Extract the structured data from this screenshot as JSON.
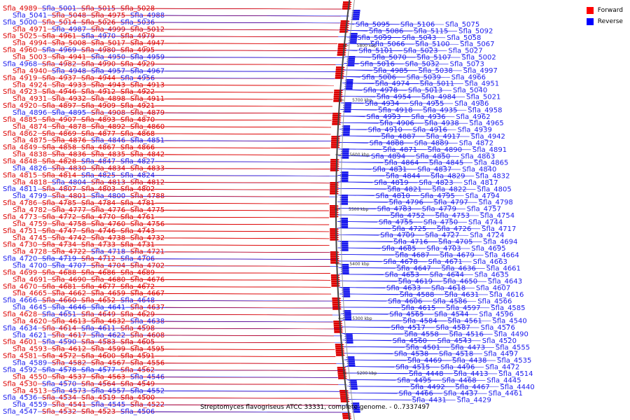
{
  "caption": "Streptomyces flavogriseus ATCC 33331, complete genome. - 0..7337497",
  "legend": {
    "items": [
      {
        "label": "Forward",
        "color": "#ff0000"
      },
      {
        "label": "Reverse",
        "color": "#0000ff"
      }
    ]
  },
  "colors": {
    "forward": "#dd0000",
    "reverse": "#1a1aee",
    "backbone": "#555555"
  },
  "ruler_labels": [
    "5800 kbp",
    "5700 kbp",
    "5600 kbp",
    "5500 kbp",
    "5400 kbp",
    "5300 kbp",
    "5200 kbp"
  ],
  "left_labels": [
    [
      "Sfla_4989",
      "f"
    ],
    [
      "Sfla_5001",
      "r"
    ],
    [
      "Sfla_5015",
      "f"
    ],
    [
      "Sfla_5028",
      "f"
    ],
    [
      "Sfla_5041",
      "r"
    ],
    [
      "Sfla_5048",
      "f"
    ],
    [
      "Sfla_4975",
      "f"
    ],
    [
      "Sfla_4988",
      "r"
    ],
    [
      "Sfla_5000",
      "r"
    ],
    [
      "Sfla_5014",
      "f"
    ],
    [
      "Sfla_5026",
      "f"
    ],
    [
      "Sfla_5036",
      "r"
    ],
    [
      "Sfla_4971",
      "f"
    ],
    [
      "Sfla_4987",
      "r"
    ],
    [
      "Sfla_4999",
      "f"
    ],
    [
      "Sfla_5012",
      "f"
    ],
    [
      "Sfla_5025",
      "f"
    ],
    [
      "Sfla_4961",
      "f"
    ],
    [
      "Sfla_4970",
      "r"
    ],
    [
      "Sfla_4979",
      "f"
    ],
    [
      "Sfla_4994",
      "f"
    ],
    [
      "Sfla_5008",
      "f"
    ],
    [
      "Sfla_5017",
      "f"
    ],
    [
      "Sfla_4947",
      "f"
    ],
    [
      "Sfla_4960",
      "f"
    ],
    [
      "Sfla_4969",
      "r"
    ],
    [
      "Sfla_4980",
      "f"
    ],
    [
      "Sfla_4995",
      "f"
    ],
    [
      "Sfla_5003",
      "f"
    ],
    [
      "Sfla_4941",
      "f"
    ],
    [
      "Sfla_4950",
      "r"
    ],
    [
      "Sfla_4959",
      "r"
    ],
    [
      "Sfla_4968",
      "r"
    ],
    [
      "Sfla_4982",
      "f"
    ],
    [
      "Sfla_4990",
      "f"
    ],
    [
      "Sfla_4929",
      "f"
    ],
    [
      "Sfla_4940",
      "f"
    ],
    [
      "Sfla_4948",
      "r"
    ],
    [
      "Sfla_4957",
      "r"
    ],
    [
      "Sfla_4967",
      "r"
    ],
    [
      "Sfla_4919",
      "f"
    ],
    [
      "Sfla_4937",
      "f"
    ],
    [
      "Sfla_4944",
      "f"
    ],
    [
      "Sfla_4956",
      "r"
    ],
    [
      "Sfla_4924",
      "f"
    ],
    [
      "Sfla_4933",
      "f"
    ],
    [
      "Sfla_4943",
      "f"
    ],
    [
      "Sfla_4913",
      "f"
    ],
    [
      "Sfla_4923",
      "f"
    ],
    [
      "Sfla_4946",
      "f"
    ],
    [
      "Sfla_4912",
      "f"
    ],
    [
      "Sfla_4922",
      "f"
    ],
    [
      "Sfla_4931",
      "f"
    ],
    [
      "Sfla_4932",
      "f"
    ],
    [
      "Sfla_4898",
      "f"
    ],
    [
      "Sfla_4911",
      "f"
    ],
    [
      "Sfla_4920",
      "f"
    ],
    [
      "Sfla_4897",
      "f"
    ],
    [
      "Sfla_4909",
      "f"
    ],
    [
      "Sfla_4921",
      "f"
    ],
    [
      "Sfla_4896",
      "r"
    ],
    [
      "Sfla_4895",
      "r"
    ],
    [
      "Sfla_4908",
      "f"
    ],
    [
      "Sfla_4879",
      "f"
    ],
    [
      "Sfla_4885",
      "f"
    ],
    [
      "Sfla_4907",
      "f"
    ],
    [
      "Sfla_4893",
      "f"
    ],
    [
      "Sfla_4870",
      "f"
    ],
    [
      "Sfla_4874",
      "f"
    ],
    [
      "Sfla_4878",
      "f"
    ],
    [
      "Sfla_4892",
      "f"
    ],
    [
      "Sfla_4860",
      "f"
    ],
    [
      "Sfla_4862",
      "f"
    ],
    [
      "Sfla_4869",
      "f"
    ],
    [
      "Sfla_4877",
      "f"
    ],
    [
      "Sfla_4868",
      "f"
    ],
    [
      "Sfla_4875",
      "f"
    ],
    [
      "Sfla_4876",
      "f"
    ],
    [
      "Sfla_4846",
      "r"
    ],
    [
      "Sfla_4851",
      "r"
    ],
    [
      "Sfla_4849",
      "f"
    ],
    [
      "Sfla_4858",
      "f"
    ],
    [
      "Sfla_4867",
      "f"
    ],
    [
      "Sfla_4866",
      "f"
    ],
    [
      "Sfla_4838",
      "f"
    ],
    [
      "Sfla_4836",
      "f"
    ],
    [
      "Sfla_4835",
      "f"
    ],
    [
      "Sfla_4842",
      "f"
    ],
    [
      "Sfla_4848",
      "f"
    ],
    [
      "Sfla_4828",
      "f"
    ],
    [
      "Sfla_4847",
      "r"
    ],
    [
      "Sfla_4827",
      "r"
    ],
    [
      "Sfla_4826",
      "r"
    ],
    [
      "Sfla_4830",
      "f"
    ],
    [
      "Sfla_4834",
      "f"
    ],
    [
      "Sfla_4833",
      "f"
    ],
    [
      "Sfla_4815",
      "f"
    ],
    [
      "Sfla_4814",
      "f"
    ],
    [
      "Sfla_4825",
      "r"
    ],
    [
      "Sfla_4824",
      "r"
    ],
    [
      "Sfla_4818",
      "f"
    ],
    [
      "Sfla_4804",
      "r"
    ],
    [
      "Sfla_4813",
      "f"
    ],
    [
      "Sfla_4812",
      "f"
    ],
    [
      "Sfla_4811",
      "r"
    ],
    [
      "Sfla_4807",
      "f"
    ],
    [
      "Sfla_4803",
      "f"
    ],
    [
      "Sfla_4802",
      "f"
    ],
    [
      "Sfla_4799",
      "r"
    ],
    [
      "Sfla_4801",
      "f"
    ],
    [
      "Sfla_4800",
      "r"
    ],
    [
      "Sfla_4788",
      "f"
    ],
    [
      "Sfla_4786",
      "f"
    ],
    [
      "Sfla_4785",
      "f"
    ],
    [
      "Sfla_4784",
      "f"
    ],
    [
      "Sfla_4781",
      "f"
    ],
    [
      "Sfla_4782",
      "f"
    ],
    [
      "Sfla_4777",
      "f"
    ],
    [
      "Sfla_4776",
      "f"
    ],
    [
      "Sfla_4775",
      "f"
    ],
    [
      "Sfla_4773",
      "f"
    ],
    [
      "Sfla_4772",
      "f"
    ],
    [
      "Sfla_4770",
      "f"
    ],
    [
      "Sfla_4761",
      "f"
    ],
    [
      "Sfla_4759",
      "f"
    ],
    [
      "Sfla_4758",
      "f"
    ],
    [
      "Sfla_4760",
      "f"
    ],
    [
      "Sfla_4756",
      "f"
    ],
    [
      "Sfla_4751",
      "f"
    ],
    [
      "Sfla_4747",
      "f"
    ],
    [
      "Sfla_4746",
      "f"
    ],
    [
      "Sfla_4743",
      "f"
    ],
    [
      "Sfla_4745",
      "f"
    ],
    [
      "Sfla_4742",
      "f"
    ],
    [
      "Sfla_4738",
      "f"
    ],
    [
      "Sfla_4732",
      "f"
    ],
    [
      "Sfla_4730",
      "f"
    ],
    [
      "Sfla_4734",
      "f"
    ],
    [
      "Sfla_4733",
      "f"
    ],
    [
      "Sfla_4731",
      "f"
    ],
    [
      "Sfla_4728",
      "f"
    ],
    [
      "Sfla_4722",
      "f"
    ],
    [
      "Sfla_4718",
      "r"
    ],
    [
      "Sfla_4721",
      "f"
    ],
    [
      "Sfla_4720",
      "r"
    ],
    [
      "Sfla_4719",
      "r"
    ],
    [
      "Sfla_4712",
      "f"
    ],
    [
      "Sfla_4706",
      "r"
    ],
    [
      "Sfla_4700",
      "r"
    ],
    [
      "Sfla_4707",
      "r"
    ],
    [
      "Sfla_4704",
      "f"
    ],
    [
      "Sfla_4702",
      "f"
    ],
    [
      "Sfla_4699",
      "f"
    ],
    [
      "Sfla_4688",
      "f"
    ],
    [
      "Sfla_4686",
      "f"
    ],
    [
      "Sfla_4689",
      "f"
    ],
    [
      "Sfla_4691",
      "f"
    ],
    [
      "Sfla_4690",
      "f"
    ],
    [
      "Sfla_4680",
      "f"
    ],
    [
      "Sfla_4676",
      "f"
    ],
    [
      "Sfla_4670",
      "f"
    ],
    [
      "Sfla_4681",
      "f"
    ],
    [
      "Sfla_4677",
      "f"
    ],
    [
      "Sfla_4672",
      "f"
    ],
    [
      "Sfla_4665",
      "f"
    ],
    [
      "Sfla_4662",
      "f"
    ],
    [
      "Sfla_4659",
      "f"
    ],
    [
      "Sfla_4667",
      "f"
    ],
    [
      "Sfla_4666",
      "r"
    ],
    [
      "Sfla_4660",
      "f"
    ],
    [
      "Sfla_4652",
      "f"
    ],
    [
      "Sfla_4648",
      "r"
    ],
    [
      "Sfla_4645",
      "r"
    ],
    [
      "Sfla_4646",
      "r"
    ],
    [
      "Sfla_4641",
      "r"
    ],
    [
      "Sfla_4637",
      "f"
    ],
    [
      "Sfla_4628",
      "f"
    ],
    [
      "Sfla_4651",
      "r"
    ],
    [
      "Sfla_4649",
      "f"
    ],
    [
      "Sfla_4629",
      "f"
    ],
    [
      "Sfla_4620",
      "f"
    ],
    [
      "Sfla_4613",
      "f"
    ],
    [
      "Sfla_4632",
      "f"
    ],
    [
      "Sfla_4638",
      "r"
    ],
    [
      "Sfla_4634",
      "r"
    ],
    [
      "Sfla_4614",
      "f"
    ],
    [
      "Sfla_4611",
      "r"
    ],
    [
      "Sfla_4598",
      "f"
    ],
    [
      "Sfla_4621",
      "r"
    ],
    [
      "Sfla_4617",
      "f"
    ],
    [
      "Sfla_4622",
      "r"
    ],
    [
      "Sfla_4608",
      "f"
    ],
    [
      "Sfla_4601",
      "f"
    ],
    [
      "Sfla_4590",
      "r"
    ],
    [
      "Sfla_4583",
      "f"
    ],
    [
      "Sfla_4605",
      "f"
    ],
    [
      "Sfla_4593",
      "f"
    ],
    [
      "Sfla_4612",
      "f"
    ],
    [
      "Sfla_4599",
      "f"
    ],
    [
      "Sfla_4595",
      "f"
    ],
    [
      "Sfla_4581",
      "f"
    ],
    [
      "Sfla_4572",
      "f"
    ],
    [
      "Sfla_4600",
      "f"
    ],
    [
      "Sfla_4591",
      "f"
    ],
    [
      "Sfla_4589",
      "r"
    ],
    [
      "Sfla_4582",
      "f"
    ],
    [
      "Sfla_4567",
      "f"
    ],
    [
      "Sfla_4556",
      "f"
    ],
    [
      "Sfla_4592",
      "r"
    ],
    [
      "Sfla_4578",
      "r"
    ],
    [
      "Sfla_4577",
      "r"
    ],
    [
      "Sfla_4562",
      "f"
    ],
    [
      "Sfla_4550",
      "f"
    ],
    [
      "Sfla_4537",
      "f"
    ],
    [
      "Sfla_4563",
      "f"
    ],
    [
      "Sfla_4546",
      "r"
    ],
    [
      "Sfla_4530",
      "f"
    ],
    [
      "Sfla_4570",
      "r"
    ],
    [
      "Sfla_4564",
      "f"
    ],
    [
      "Sfla_4549",
      "f"
    ],
    [
      "Sfla_4513",
      "f"
    ],
    [
      "Sfla_4573",
      "r"
    ],
    [
      "Sfla_4557",
      "r"
    ],
    [
      "Sfla_4552",
      "r"
    ],
    [
      "Sfla_4536",
      "r"
    ],
    [
      "Sfla_4534",
      "f"
    ],
    [
      "Sfla_4519",
      "f"
    ],
    [
      "Sfla_4500",
      "f"
    ],
    [
      "Sfla_4559",
      "r"
    ],
    [
      "Sfla_4541",
      "f"
    ],
    [
      "Sfla_4545",
      "r"
    ],
    [
      "Sfla_4522",
      "f"
    ],
    [
      "Sfla_4547",
      "r"
    ],
    [
      "Sfla_4532",
      "f"
    ],
    [
      "Sfla_4523",
      "f"
    ],
    [
      "Sfla_4506",
      "r"
    ]
  ],
  "right_labels": [
    [
      "Sfla_5095",
      "r"
    ],
    [
      "Sfla_5106",
      "r"
    ],
    [
      "Sfla_5075",
      "r"
    ],
    [
      "Sfla_5086",
      "r"
    ],
    [
      "Sfla_5115",
      "r"
    ],
    [
      "Sfla_5092",
      "r"
    ],
    [
      "Sfla_5099",
      "r"
    ],
    [
      "Sfla_5043",
      "r"
    ],
    [
      "Sfla_5058",
      "r"
    ],
    [
      "Sfla_5066",
      "r"
    ],
    [
      "Sfla_5100",
      "r"
    ],
    [
      "Sfla_5067",
      "r"
    ],
    [
      "Sfla_5101",
      "r"
    ],
    [
      "Sfla_5023",
      "r"
    ],
    [
      "Sfla_5027",
      "r"
    ],
    [
      "Sfla_5070",
      "r"
    ],
    [
      "Sfla_5107",
      "r"
    ],
    [
      "Sfla_5002",
      "r"
    ],
    [
      "Sfla_5016",
      "r"
    ],
    [
      "Sfla_5032",
      "r"
    ],
    [
      "Sfla_5073",
      "r"
    ],
    [
      "Sfla_4985",
      "r"
    ],
    [
      "Sfla_5038",
      "r"
    ],
    [
      "Sfla_4997",
      "r"
    ],
    [
      "Sfla_5006",
      "r"
    ],
    [
      "Sfla_5039",
      "r"
    ],
    [
      "Sfla_4966",
      "r"
    ],
    [
      "Sfla_4974",
      "r"
    ],
    [
      "Sfla_5011",
      "r"
    ],
    [
      "Sfla_4951",
      "r"
    ],
    [
      "Sfla_4978",
      "r"
    ],
    [
      "Sfla_5013",
      "r"
    ],
    [
      "Sfla_5040",
      "r"
    ],
    [
      "Sfla_4954",
      "r"
    ],
    [
      "Sfla_4984",
      "r"
    ],
    [
      "Sfla_5021",
      "r"
    ],
    [
      "Sfla_4934",
      "r"
    ],
    [
      "Sfla_4955",
      "r"
    ],
    [
      "Sfla_4986",
      "r"
    ],
    [
      "Sfla_4918",
      "r"
    ],
    [
      "Sfla_4935",
      "r"
    ],
    [
      "Sfla_4958",
      "r"
    ],
    [
      "Sfla_4993",
      "r"
    ],
    [
      "Sfla_4936",
      "r"
    ],
    [
      "Sfla_4962",
      "r"
    ],
    [
      "Sfla_4906",
      "r"
    ],
    [
      "Sfla_4938",
      "r"
    ],
    [
      "Sfla_4965",
      "r"
    ],
    [
      "Sfla_4910",
      "r"
    ],
    [
      "Sfla_4916",
      "r"
    ],
    [
      "Sfla_4939",
      "r"
    ],
    [
      "Sfla_4887",
      "r"
    ],
    [
      "Sfla_4917",
      "r"
    ],
    [
      "Sfla_4942",
      "r"
    ],
    [
      "Sfla_4888",
      "r"
    ],
    [
      "Sfla_4889",
      "r"
    ],
    [
      "Sfla_4872",
      "r"
    ],
    [
      "Sfla_4871",
      "r"
    ],
    [
      "Sfla_4890",
      "r"
    ],
    [
      "Sfla_4891",
      "r"
    ],
    [
      "Sfla_4894",
      "r"
    ],
    [
      "Sfla_4850",
      "r"
    ],
    [
      "Sfla_4863",
      "r"
    ],
    [
      "Sfla_4864",
      "r"
    ],
    [
      "Sfla_4845",
      "r"
    ],
    [
      "Sfla_4865",
      "r"
    ],
    [
      "Sfla_4831",
      "r"
    ],
    [
      "Sfla_4837",
      "r"
    ],
    [
      "Sfla_4840",
      "r"
    ],
    [
      "Sfla_4844",
      "r"
    ],
    [
      "Sfla_4829",
      "r"
    ],
    [
      "Sfla_4832",
      "r"
    ],
    [
      "Sfla_4819",
      "r"
    ],
    [
      "Sfla_4823",
      "r"
    ],
    [
      "Sfla_4817",
      "r"
    ],
    [
      "Sfla_4821",
      "r"
    ],
    [
      "Sfla_4822",
      "r"
    ],
    [
      "Sfla_4805",
      "r"
    ],
    [
      "Sfla_4810",
      "r"
    ],
    [
      "Sfla_4795",
      "r"
    ],
    [
      "Sfla_4794",
      "r"
    ],
    [
      "Sfla_4796",
      "r"
    ],
    [
      "Sfla_4797",
      "r"
    ],
    [
      "Sfla_4798",
      "r"
    ],
    [
      "Sfla_4783",
      "r"
    ],
    [
      "Sfla_4779",
      "r"
    ],
    [
      "Sfla_4757",
      "r"
    ],
    [
      "Sfla_4752",
      "r"
    ],
    [
      "Sfla_4753",
      "r"
    ],
    [
      "Sfla_4754",
      "r"
    ],
    [
      "Sfla_4755",
      "r"
    ],
    [
      "Sfla_4750",
      "r"
    ],
    [
      "Sfla_4744",
      "r"
    ],
    [
      "Sfla_4725",
      "r"
    ],
    [
      "Sfla_4726",
      "r"
    ],
    [
      "Sfla_4717",
      "r"
    ],
    [
      "Sfla_4709",
      "r"
    ],
    [
      "Sfla_4727",
      "r"
    ],
    [
      "Sfla_4724",
      "r"
    ],
    [
      "Sfla_4716",
      "r"
    ],
    [
      "Sfla_4705",
      "r"
    ],
    [
      "Sfla_4694",
      "r"
    ],
    [
      "Sfla_4685",
      "r"
    ],
    [
      "Sfla_4703",
      "r"
    ],
    [
      "Sfla_4695",
      "r"
    ],
    [
      "Sfla_4687",
      "r"
    ],
    [
      "Sfla_4679",
      "r"
    ],
    [
      "Sfla_4664",
      "r"
    ],
    [
      "Sfla_4678",
      "r"
    ],
    [
      "Sfla_4671",
      "r"
    ],
    [
      "Sfla_4663",
      "r"
    ],
    [
      "Sfla_4647",
      "r"
    ],
    [
      "Sfla_4636",
      "r"
    ],
    [
      "Sfla_4661",
      "r"
    ],
    [
      "Sfla_4653",
      "r"
    ],
    [
      "Sfla_4644",
      "r"
    ],
    [
      "Sfla_4635",
      "r"
    ],
    [
      "Sfla_4619",
      "r"
    ],
    [
      "Sfla_4650",
      "r"
    ],
    [
      "Sfla_4643",
      "r"
    ],
    [
      "Sfla_4633",
      "r"
    ],
    [
      "Sfla_4618",
      "r"
    ],
    [
      "Sfla_4607",
      "r"
    ],
    [
      "Sfla_4588",
      "r"
    ],
    [
      "Sfla_4631",
      "r"
    ],
    [
      "Sfla_4616",
      "r"
    ],
    [
      "Sfla_4606",
      "r"
    ],
    [
      "Sfla_4586",
      "r"
    ],
    [
      "Sfla_4566",
      "r"
    ],
    [
      "Sfla_4615",
      "r"
    ],
    [
      "Sfla_4597",
      "r"
    ],
    [
      "Sfla_4585",
      "r"
    ],
    [
      "Sfla_4565",
      "r"
    ],
    [
      "Sfla_4544",
      "r"
    ],
    [
      "Sfla_4596",
      "r"
    ],
    [
      "Sfla_4584",
      "r"
    ],
    [
      "Sfla_4561",
      "r"
    ],
    [
      "Sfla_4540",
      "r"
    ],
    [
      "Sfla_4517",
      "r"
    ],
    [
      "Sfla_4587",
      "r"
    ],
    [
      "Sfla_4576",
      "r"
    ],
    [
      "Sfla_4558",
      "r"
    ],
    [
      "Sfla_4516",
      "r"
    ],
    [
      "Sfla_4490",
      "r"
    ],
    [
      "Sfla_4560",
      "r"
    ],
    [
      "Sfla_4543",
      "r"
    ],
    [
      "Sfla_4520",
      "r"
    ],
    [
      "Sfla_4501",
      "r"
    ],
    [
      "Sfla_4473",
      "r"
    ],
    [
      "Sfla_4555",
      "r"
    ],
    [
      "Sfla_4538",
      "r"
    ],
    [
      "Sfla_4518",
      "r"
    ],
    [
      "Sfla_4497",
      "r"
    ],
    [
      "Sfla_4469",
      "r"
    ],
    [
      "Sfla_4438",
      "r"
    ],
    [
      "Sfla_4535",
      "r"
    ],
    [
      "Sfla_4515",
      "r"
    ],
    [
      "Sfla_4496",
      "r"
    ],
    [
      "Sfla_4472",
      "r"
    ],
    [
      "Sfla_4448",
      "r"
    ],
    [
      "Sfla_4413",
      "r"
    ],
    [
      "Sfla_4514",
      "r"
    ],
    [
      "Sfla_4495",
      "r"
    ],
    [
      "Sfla_4468",
      "r"
    ],
    [
      "Sfla_4445",
      "r"
    ],
    [
      "Sfla_4492",
      "r"
    ],
    [
      "Sfla_4467",
      "r"
    ],
    [
      "Sfla_4440",
      "r"
    ],
    [
      "Sfla_4466",
      "r"
    ],
    [
      "Sfla_4437",
      "r"
    ],
    [
      "Sfla_4461",
      "r"
    ],
    [
      "Sfla_4431",
      "r"
    ],
    [
      "Sfla_4429",
      "r"
    ]
  ]
}
